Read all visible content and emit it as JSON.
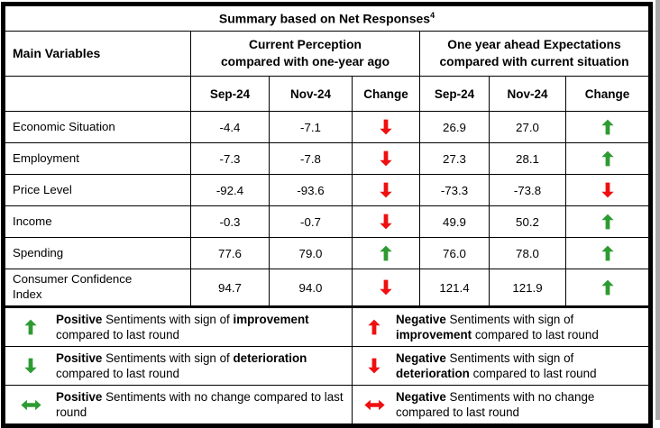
{
  "colors": {
    "green": "#2e9b32",
    "red": "#ee1010",
    "line": "#000000",
    "page_edge": "#a9a9a9"
  },
  "title": {
    "text": "Summary based on Net Responses",
    "superscript": "4"
  },
  "table": {
    "main_col_header": "Main Variables",
    "group_headers": [
      {
        "line1": "Current Perception",
        "line2": "compared with one-year ago"
      },
      {
        "line1": "One year ahead Expectations",
        "line2": "compared with current situation"
      }
    ],
    "sub_headers": [
      "Sep-24",
      "Nov-24",
      "Change",
      "Sep-24",
      "Nov-24",
      "Change"
    ],
    "rows": [
      {
        "label": "Economic Situation",
        "cp_sep": "-4.4",
        "cp_nov": "-7.1",
        "cp_change": "down:red",
        "ex_sep": "26.9",
        "ex_nov": "27.0",
        "ex_change": "up:green"
      },
      {
        "label": "Employment",
        "cp_sep": "-7.3",
        "cp_nov": "-7.8",
        "cp_change": "down:red",
        "ex_sep": "27.3",
        "ex_nov": "28.1",
        "ex_change": "up:green"
      },
      {
        "label": "Price Level",
        "cp_sep": "-92.4",
        "cp_nov": "-93.6",
        "cp_change": "down:red",
        "ex_sep": "-73.3",
        "ex_nov": "-73.8",
        "ex_change": "down:red"
      },
      {
        "label": "Income",
        "cp_sep": "-0.3",
        "cp_nov": "-0.7",
        "cp_change": "down:red",
        "ex_sep": "49.9",
        "ex_nov": "50.2",
        "ex_change": "up:green"
      },
      {
        "label": "Spending",
        "cp_sep": "77.6",
        "cp_nov": "79.0",
        "cp_change": "up:green",
        "ex_sep": "76.0",
        "ex_nov": "78.0",
        "ex_change": "up:green"
      },
      {
        "label": "Consumer Confidence Index",
        "cp_sep": "94.7",
        "cp_nov": "94.0",
        "cp_change": "down:red",
        "ex_sep": "121.4",
        "ex_nov": "121.9",
        "ex_change": "up:green"
      }
    ]
  },
  "legend": {
    "rows": [
      {
        "left": {
          "arrow": "up:green",
          "p1": "Positive",
          "p2": " Sentiments with sign of ",
          "p3": "improvement",
          "p4": " compared to last round"
        },
        "right": {
          "arrow": "up:red",
          "p1": "Negative",
          "p2": " Sentiments with sign of ",
          "p3": "improvement",
          "p4": " compared to last round"
        }
      },
      {
        "left": {
          "arrow": "down:green",
          "p1": "Positive",
          "p2": " Sentiments with sign of ",
          "p3": "deterioration",
          "p4": " compared to last round"
        },
        "right": {
          "arrow": "down:red",
          "p1": "Negative",
          "p2": " Sentiments with sign of ",
          "p3": "deterioration",
          "p4": " compared to last round"
        }
      },
      {
        "left": {
          "arrow": "lr:green",
          "p1": "Positive",
          "p2": " Sentiments with no change compared to last round",
          "p3": "",
          "p4": ""
        },
        "right": {
          "arrow": "lr:red",
          "p1": "Negative",
          "p2": " Sentiments with no change compared to last round",
          "p3": "",
          "p4": ""
        }
      }
    ]
  }
}
